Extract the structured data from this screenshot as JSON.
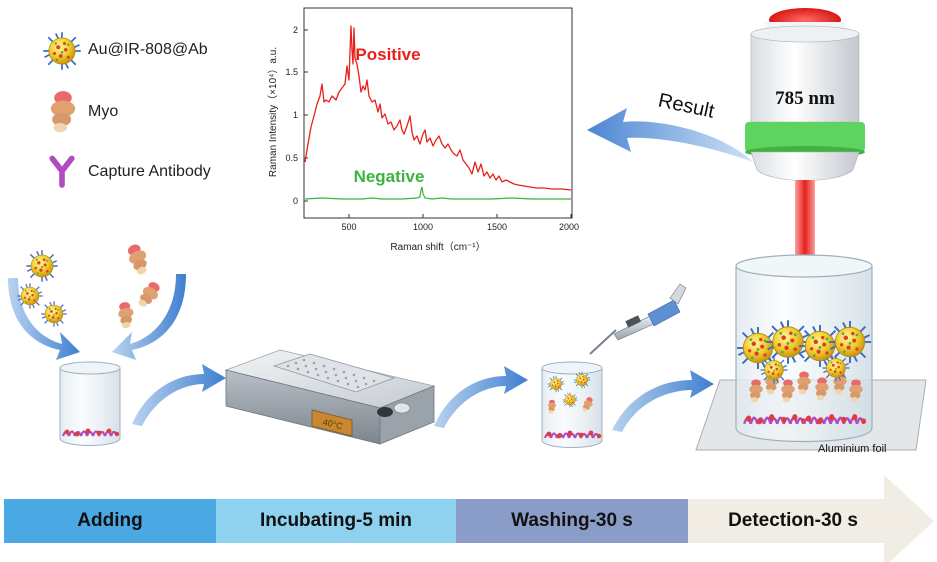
{
  "legend": {
    "items": [
      {
        "label": "Au@IR-808@Ab",
        "icon": "nanoparticle-icon"
      },
      {
        "label": "Myo",
        "icon": "myoglobin-icon"
      },
      {
        "label": "Capture Antibody",
        "icon": "antibody-icon"
      }
    ]
  },
  "spectrum": {
    "ylabel": "Raman Intensity（×10⁴）a.u.",
    "xlabel": "Raman shift（cm⁻¹）",
    "xticks": [
      "500",
      "1000",
      "1500",
      "2000"
    ],
    "yticks": [
      "2",
      "1.5",
      "1",
      "0.5",
      "0"
    ],
    "positive_label": "Positive",
    "negative_label": "Negative",
    "positive_color": "#e8201a",
    "negative_color": "#3cb43c"
  },
  "laser": {
    "wavelength": "785 nm",
    "beam_color": "#e8201a",
    "ring_color": "#5fd35f"
  },
  "result_label": "Result",
  "heater_display": "40°C",
  "foil_label": "Aluminium foil",
  "timeline": {
    "stages": [
      {
        "label": "Adding",
        "color": "#4aa8e2"
      },
      {
        "label": "Incubating-5 min",
        "color": "#8fd2f0"
      },
      {
        "label": "Washing-30 s",
        "color": "#8a9dc9"
      },
      {
        "label": "Detection-30 s",
        "color": "#f1ece4"
      }
    ]
  }
}
